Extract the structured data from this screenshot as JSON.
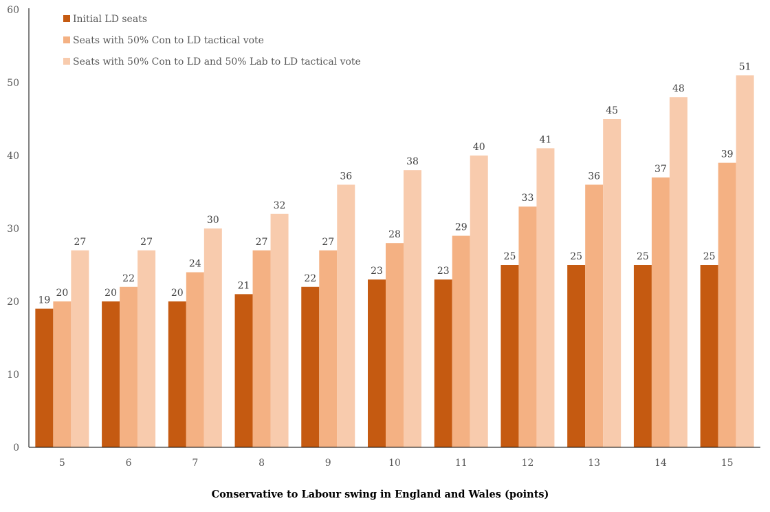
{
  "chart_data": {
    "type": "bar",
    "title": "",
    "xlabel": "Conservative to Labour swing in England and Wales (points)",
    "ylabel": "",
    "ylim": [
      0,
      60
    ],
    "yticks": [
      0,
      10,
      20,
      30,
      40,
      50,
      60
    ],
    "grid": false,
    "legend_position": "top-left",
    "categories": [
      "5",
      "6",
      "7",
      "8",
      "9",
      "10",
      "11",
      "12",
      "13",
      "14",
      "15"
    ],
    "series": [
      {
        "name": "Initial LD seats",
        "color": "#c55a11",
        "values": [
          19,
          20,
          20,
          21,
          22,
          23,
          23,
          25,
          25,
          25,
          25
        ]
      },
      {
        "name": "Seats with 50% Con to LD tactical vote",
        "color": "#f4b183",
        "values": [
          20,
          22,
          24,
          27,
          27,
          28,
          29,
          33,
          36,
          37,
          39
        ]
      },
      {
        "name": "Seats with 50% Con to LD and 50% Lab to LD tactical vote",
        "color": "#f8cbad",
        "values": [
          27,
          27,
          30,
          32,
          36,
          38,
          40,
          41,
          45,
          48,
          51
        ]
      }
    ]
  }
}
